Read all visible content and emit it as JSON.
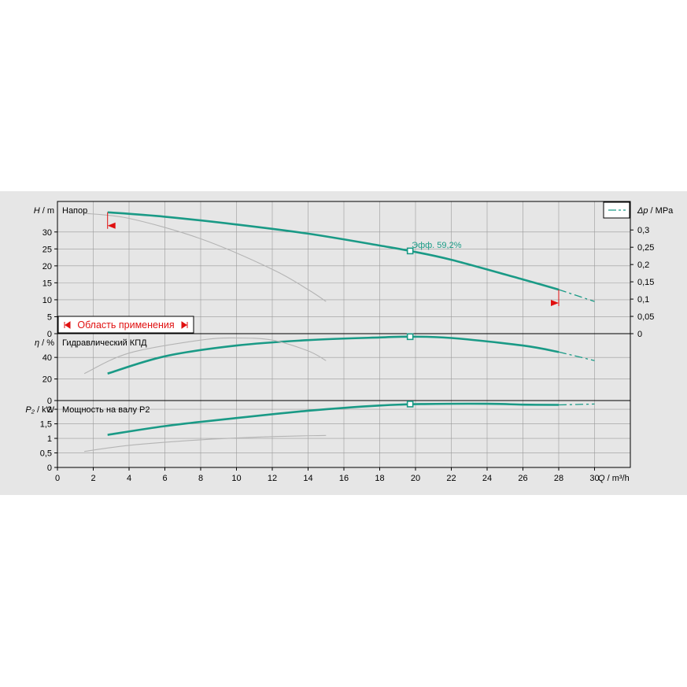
{
  "chart_data": {
    "type": "line",
    "x_axis": {
      "label_symbol": "Q",
      "label_unit": " / m³/h",
      "min": 0,
      "max": 32,
      "ticks": [
        "0",
        "2",
        "4",
        "6",
        "8",
        "10",
        "12",
        "14",
        "16",
        "18",
        "20",
        "22",
        "24",
        "26",
        "28",
        "30"
      ]
    },
    "panels": [
      {
        "id": "head",
        "title": "Напор",
        "y_label_symbol": "H",
        "y_label_unit": " / m",
        "ylim": [
          0,
          39
        ],
        "yticks": [
          "0",
          "5",
          "10",
          "15",
          "20",
          "25",
          "30"
        ],
        "right_axis": {
          "label_symbol": "Δp",
          "label_unit": " / MPa",
          "ticks": [
            "0",
            "0,05",
            "0,1",
            "0,15",
            "0,2",
            "0,25",
            "0,3"
          ]
        },
        "series": [
          {
            "role": "main",
            "x": [
              2.8,
              6,
              10,
              14,
              18,
              19.7,
              22,
              26,
              28
            ],
            "y": [
              35.8,
              34.5,
              32.2,
              29.5,
              26.0,
              24.4,
              21.8,
              16.0,
              13.0
            ]
          },
          {
            "role": "extension",
            "x": [
              28,
              30
            ],
            "y": [
              13.0,
              9.5
            ]
          },
          {
            "role": "secondary",
            "x": [
              1.5,
              4,
              8,
              12,
              14,
              15
            ],
            "y": [
              35.5,
              34.0,
              28.0,
              19.0,
              13.0,
              9.5
            ]
          }
        ],
        "annotation": {
          "text": "Эфф.  59,2%",
          "x": 19.7,
          "y": 24.4
        },
        "operating_range": {
          "label": "Область применения",
          "q_min": 2.8,
          "q_max": 28
        }
      },
      {
        "id": "efficiency",
        "title": "Гидравлический КПД",
        "y_label_symbol": "η",
        "y_label_unit": " / %",
        "ylim": [
          0,
          62
        ],
        "yticks": [
          "0",
          "20",
          "40"
        ],
        "series": [
          {
            "role": "main",
            "x": [
              2.8,
              6,
              10,
              14,
              18,
              19.7,
              22,
              26,
              28
            ],
            "y": [
              25,
              41,
              51,
              56,
              58.5,
              59.2,
              58,
              51,
              45
            ]
          },
          {
            "role": "extension",
            "x": [
              28,
              30
            ],
            "y": [
              45,
              37
            ]
          },
          {
            "role": "secondary",
            "x": [
              1.5,
              4,
              8,
              10,
              12,
              14,
              15
            ],
            "y": [
              25,
              44,
              56,
              58,
              56,
              46,
              37
            ]
          }
        ],
        "marker": {
          "x": 19.7,
          "y": 59.2
        }
      },
      {
        "id": "power",
        "title": "Мощность на валу P2",
        "y_label_symbol": "P₂",
        "y_label_unit": " / kW",
        "ylim": [
          0,
          2.3
        ],
        "yticks": [
          "0",
          "0,5",
          "1",
          "1,5",
          "2"
        ],
        "series": [
          {
            "role": "main",
            "x": [
              2.8,
              6,
              10,
              14,
              18,
              20.5,
              24,
              26,
              28
            ],
            "y": [
              1.12,
              1.42,
              1.7,
              1.95,
              2.13,
              2.18,
              2.19,
              2.16,
              2.15
            ]
          },
          {
            "role": "extension",
            "x": [
              28,
              30
            ],
            "y": [
              2.15,
              2.18
            ]
          },
          {
            "role": "secondary",
            "x": [
              1.5,
              4,
              8,
              12,
              15
            ],
            "y": [
              0.55,
              0.76,
              0.95,
              1.06,
              1.1
            ]
          }
        ],
        "marker": {
          "x": 19.7,
          "y": 2.18
        }
      }
    ],
    "colors": {
      "main": "#1a9a86",
      "secondary": "#b4b4b4",
      "grid": "#9a9a9a",
      "range_marker": "#e01010",
      "panel_bg": "#e6e6e6",
      "plot_bg": "#e6e6e6"
    },
    "legend": {
      "position": "top-right",
      "symbol": "dashed-line"
    }
  }
}
